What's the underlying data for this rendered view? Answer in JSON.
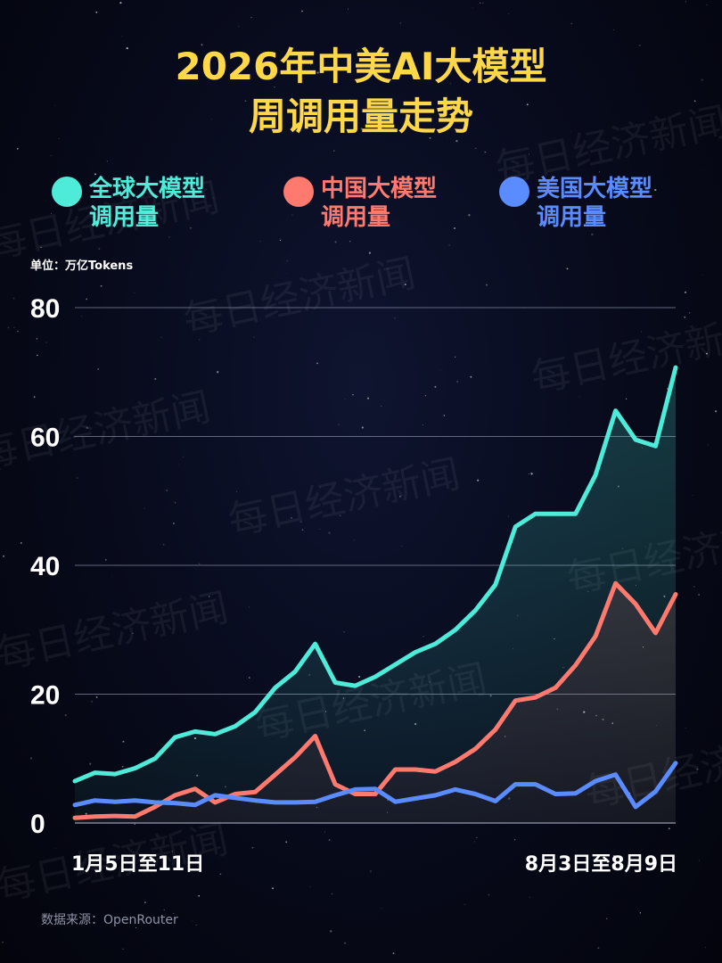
{
  "header": {
    "title_line1": "2026年中美AI大模型",
    "title_line2": "周调用量走势"
  },
  "legend": [
    {
      "line1": "全球大模型",
      "line2": "调用量",
      "color": "#4eecd8"
    },
    {
      "line1": "中国大模型",
      "line2": "调用量",
      "color": "#ff7a6e"
    },
    {
      "line1": "美国大模型",
      "line2": "调用量",
      "color": "#5b8cff"
    }
  ],
  "unit_label": "单位：万亿Tokens",
  "source_label": "数据来源：OpenRouter",
  "watermark": "每日经济新闻",
  "colors": {
    "title": "#ffd84a",
    "global": "#4eecd8",
    "china": "#ff7a6e",
    "us": "#5b8cff",
    "grid": "#7a7f95"
  },
  "chart_data": {
    "type": "line",
    "title": "2026年中美AI大模型周调用量走势",
    "unit": "万亿Tokens",
    "x_first_label": "1月5日至11日",
    "x_last_label": "8月3日至8月9日",
    "ylim": [
      0,
      80
    ],
    "yticks": [
      0,
      20,
      40,
      60,
      80
    ],
    "grid": true,
    "legend_position": "top",
    "series": [
      {
        "name": "全球大模型调用量",
        "color": "#4eecd8",
        "values": [
          6.5,
          7.8,
          7.6,
          8.5,
          10,
          13.3,
          14.2,
          13.8,
          15,
          17.2,
          21,
          23.5,
          27.8,
          21.8,
          21.3,
          22.7,
          24.6,
          26.5,
          27.8,
          30,
          33,
          37,
          46,
          48,
          48,
          48,
          54,
          64,
          59.5,
          58.5,
          70.7
        ]
      },
      {
        "name": "中国大模型调用量",
        "color": "#ff7a6e",
        "values": [
          0.8,
          1,
          1.1,
          1,
          2.5,
          4.3,
          5.3,
          3.2,
          4.5,
          4.8,
          7.5,
          10.2,
          13.5,
          6,
          4.5,
          4.5,
          8.3,
          8.3,
          8,
          9.5,
          11.5,
          14.5,
          19,
          19.5,
          21,
          24.5,
          29,
          37.2,
          34,
          29.5,
          35.5
        ]
      },
      {
        "name": "美国大模型调用量",
        "color": "#5b8cff",
        "values": [
          2.8,
          3.5,
          3.3,
          3.5,
          3.2,
          3.1,
          2.8,
          4.3,
          3.9,
          3.5,
          3.2,
          3.2,
          3.3,
          4.3,
          5.2,
          5.3,
          3.3,
          3.8,
          4.3,
          5.2,
          4.5,
          3.4,
          6,
          6,
          4.5,
          4.6,
          6.5,
          7.5,
          2.5,
          4.9,
          9.3
        ]
      }
    ]
  }
}
